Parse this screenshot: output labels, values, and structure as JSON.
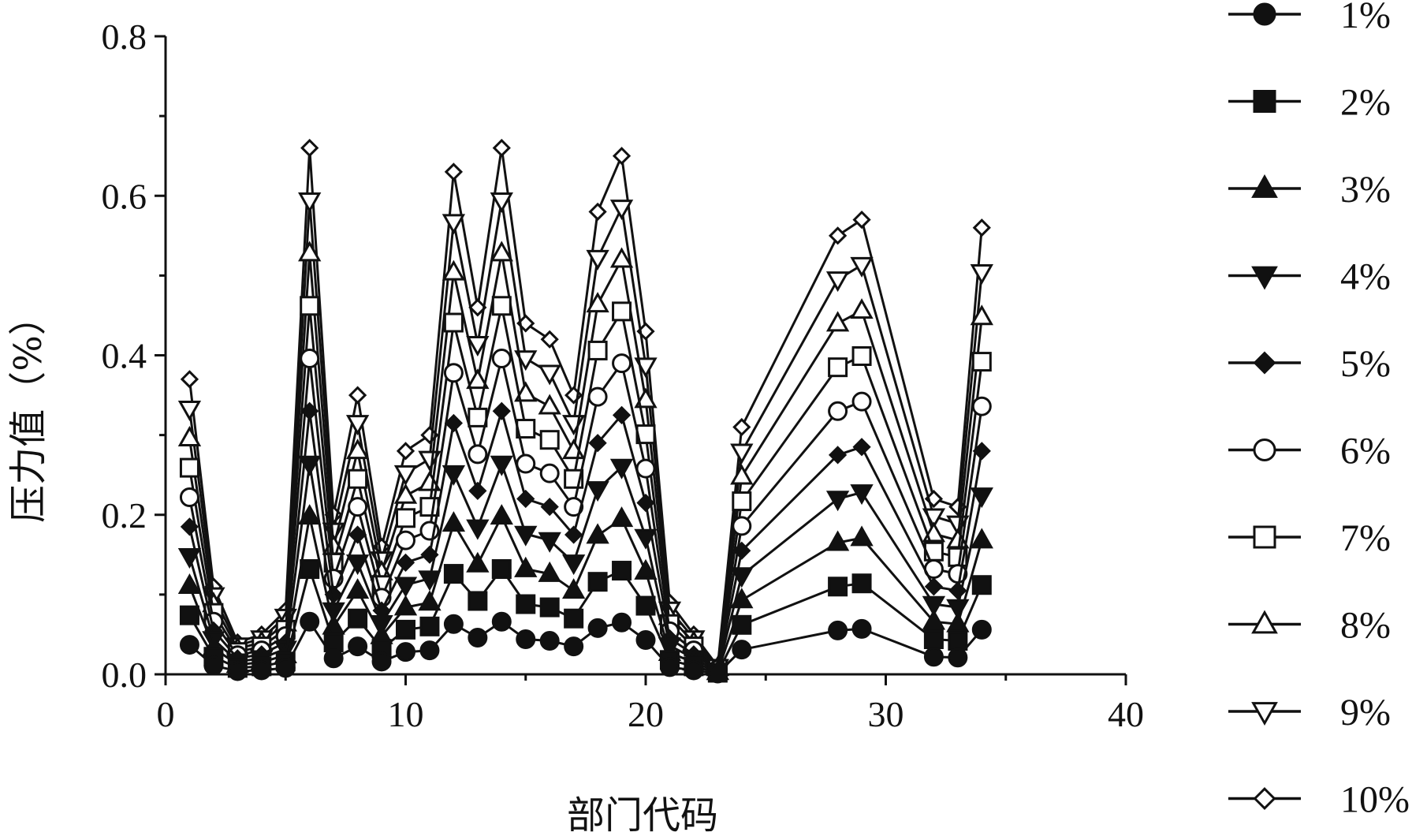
{
  "chart_data": {
    "type": "line",
    "title": "",
    "xlabel": "部门代码",
    "ylabel": "压力值（%）",
    "xlim": [
      0,
      40
    ],
    "ylim": [
      0,
      0.8
    ],
    "xticks": [
      "0",
      "10",
      "20",
      "30",
      "40"
    ],
    "yticks": [
      "0.0",
      "0.2",
      "0.4",
      "0.6",
      "0.8"
    ],
    "grid": false,
    "legend_position": "right",
    "x": [
      1,
      2,
      3,
      4,
      5,
      6,
      7,
      8,
      9,
      10,
      11,
      12,
      13,
      14,
      15,
      16,
      17,
      18,
      19,
      20,
      21,
      22,
      23,
      24,
      28,
      29,
      32,
      33,
      34
    ],
    "series": [
      {
        "name": "1%",
        "marker": "circle-filled",
        "values": [
          0.037,
          0.011,
          0.004,
          0.005,
          0.008,
          0.066,
          0.02,
          0.035,
          0.016,
          0.028,
          0.03,
          0.063,
          0.046,
          0.066,
          0.044,
          0.042,
          0.035,
          0.058,
          0.065,
          0.043,
          0.009,
          0.005,
          0.001,
          0.031,
          0.055,
          0.057,
          0.022,
          0.021,
          0.056
        ]
      },
      {
        "name": "2%",
        "marker": "square-filled",
        "values": [
          0.074,
          0.022,
          0.008,
          0.01,
          0.016,
          0.132,
          0.04,
          0.07,
          0.032,
          0.056,
          0.06,
          0.126,
          0.092,
          0.132,
          0.088,
          0.084,
          0.07,
          0.116,
          0.13,
          0.086,
          0.018,
          0.01,
          0.002,
          0.062,
          0.11,
          0.114,
          0.044,
          0.042,
          0.112
        ]
      },
      {
        "name": "3%",
        "marker": "triangle-up-filled",
        "values": [
          0.111,
          0.033,
          0.012,
          0.015,
          0.024,
          0.198,
          0.06,
          0.105,
          0.048,
          0.084,
          0.09,
          0.189,
          0.138,
          0.198,
          0.132,
          0.126,
          0.105,
          0.174,
          0.195,
          0.129,
          0.027,
          0.015,
          0.003,
          0.093,
          0.165,
          0.171,
          0.066,
          0.063,
          0.168
        ]
      },
      {
        "name": "4%",
        "marker": "triangle-down-filled",
        "values": [
          0.148,
          0.044,
          0.016,
          0.02,
          0.032,
          0.264,
          0.08,
          0.14,
          0.064,
          0.112,
          0.12,
          0.252,
          0.184,
          0.264,
          0.176,
          0.168,
          0.14,
          0.232,
          0.26,
          0.172,
          0.036,
          0.02,
          0.004,
          0.124,
          0.22,
          0.228,
          0.088,
          0.084,
          0.224
        ]
      },
      {
        "name": "5%",
        "marker": "diamond-filled",
        "values": [
          0.185,
          0.055,
          0.02,
          0.025,
          0.04,
          0.33,
          0.1,
          0.175,
          0.08,
          0.14,
          0.15,
          0.315,
          0.23,
          0.33,
          0.22,
          0.21,
          0.175,
          0.29,
          0.325,
          0.215,
          0.045,
          0.025,
          0.005,
          0.155,
          0.275,
          0.285,
          0.11,
          0.105,
          0.28
        ]
      },
      {
        "name": "6%",
        "marker": "circle-open",
        "values": [
          0.222,
          0.066,
          0.024,
          0.03,
          0.048,
          0.396,
          0.12,
          0.21,
          0.096,
          0.168,
          0.18,
          0.378,
          0.276,
          0.396,
          0.264,
          0.252,
          0.21,
          0.348,
          0.39,
          0.258,
          0.054,
          0.03,
          0.006,
          0.186,
          0.33,
          0.342,
          0.132,
          0.126,
          0.336
        ]
      },
      {
        "name": "7%",
        "marker": "square-open",
        "values": [
          0.259,
          0.077,
          0.028,
          0.035,
          0.056,
          0.462,
          0.14,
          0.245,
          0.112,
          0.196,
          0.21,
          0.441,
          0.322,
          0.462,
          0.308,
          0.294,
          0.245,
          0.406,
          0.455,
          0.301,
          0.063,
          0.035,
          0.007,
          0.217,
          0.385,
          0.399,
          0.154,
          0.147,
          0.392
        ]
      },
      {
        "name": "8%",
        "marker": "triangle-up-open",
        "values": [
          0.296,
          0.088,
          0.032,
          0.04,
          0.064,
          0.528,
          0.16,
          0.28,
          0.128,
          0.224,
          0.24,
          0.504,
          0.368,
          0.528,
          0.352,
          0.336,
          0.28,
          0.464,
          0.52,
          0.344,
          0.072,
          0.04,
          0.008,
          0.248,
          0.44,
          0.456,
          0.176,
          0.168,
          0.448
        ]
      },
      {
        "name": "9%",
        "marker": "triangle-down-open",
        "values": [
          0.333,
          0.099,
          0.036,
          0.045,
          0.072,
          0.594,
          0.18,
          0.315,
          0.144,
          0.252,
          0.27,
          0.567,
          0.414,
          0.594,
          0.396,
          0.378,
          0.315,
          0.522,
          0.585,
          0.387,
          0.081,
          0.045,
          0.009,
          0.279,
          0.495,
          0.513,
          0.198,
          0.189,
          0.504
        ]
      },
      {
        "name": "10%",
        "marker": "diamond-open",
        "values": [
          0.37,
          0.11,
          0.04,
          0.05,
          0.08,
          0.66,
          0.2,
          0.35,
          0.16,
          0.28,
          0.3,
          0.63,
          0.46,
          0.66,
          0.44,
          0.42,
          0.35,
          0.58,
          0.65,
          0.43,
          0.09,
          0.05,
          0.01,
          0.31,
          0.55,
          0.57,
          0.22,
          0.21,
          0.56
        ]
      }
    ]
  }
}
